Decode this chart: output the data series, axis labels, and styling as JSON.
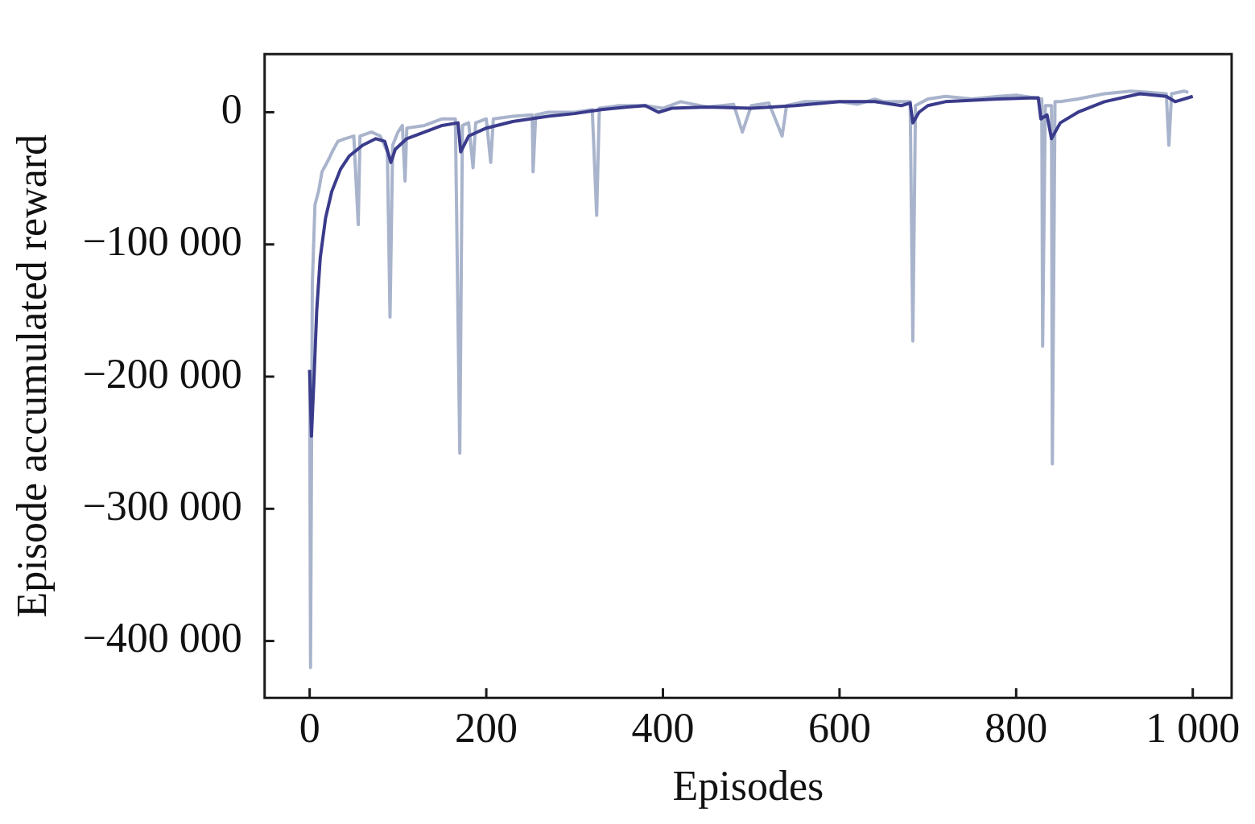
{
  "chart_data": {
    "type": "line",
    "xlabel": "Episodes",
    "ylabel": "Episode accumulated reward",
    "xlim": [
      -51,
      1044
    ],
    "ylim": [
      -443000,
      44000
    ],
    "xticks": [
      0,
      200,
      400,
      600,
      800,
      {
        "value": 1000,
        "label": "1 000"
      }
    ],
    "yticks": [
      {
        "value": -400000,
        "label": "−400 000"
      },
      {
        "value": -300000,
        "label": "−300 000"
      },
      {
        "value": -200000,
        "label": "−200 000"
      },
      {
        "value": -100000,
        "label": "−100 000"
      },
      0
    ],
    "grid": false,
    "legend": false,
    "marker": "none",
    "line_style": "solid",
    "series": [
      {
        "color": "#a9b4cc",
        "x": [
          0,
          1,
          3,
          6,
          10,
          14,
          18,
          22,
          27,
          32,
          40,
          50,
          55,
          57,
          70,
          80,
          88,
          91,
          94,
          100,
          105,
          108,
          110,
          130,
          150,
          165,
          170,
          173,
          180,
          185,
          188,
          200,
          205,
          208,
          220,
          230,
          252,
          253,
          256,
          270,
          300,
          320,
          325,
          328,
          350,
          380,
          400,
          420,
          450,
          480,
          490,
          500,
          520,
          535,
          540,
          560,
          600,
          620,
          640,
          650,
          680,
          683,
          686,
          700,
          720,
          750,
          780,
          800,
          829,
          830,
          833,
          840,
          841,
          844,
          850,
          870,
          900,
          930,
          950,
          970,
          973,
          976,
          990,
          995
        ],
        "values": [
          -195000,
          -420000,
          -130000,
          -70000,
          -60000,
          -45000,
          -40000,
          -35000,
          -28000,
          -22000,
          -20000,
          -18000,
          -85000,
          -18000,
          -15000,
          -18000,
          -30000,
          -155000,
          -25000,
          -15000,
          -10000,
          -52000,
          -12000,
          -10000,
          -5000,
          -5000,
          -258000,
          -10000,
          -8000,
          -42000,
          -8000,
          -5000,
          -38000,
          -5000,
          -4000,
          -3000,
          -2000,
          -45000,
          -2000,
          0,
          0,
          2000,
          -78000,
          3000,
          5000,
          5000,
          3000,
          8000,
          4000,
          6000,
          -15000,
          5000,
          7000,
          -18000,
          5000,
          8000,
          8000,
          6000,
          10000,
          8000,
          8000,
          -173000,
          5000,
          10000,
          12000,
          10000,
          12000,
          13000,
          10000,
          -177000,
          5000,
          5000,
          -266000,
          8000,
          8000,
          10000,
          14000,
          16000,
          15000,
          14000,
          -25000,
          14000,
          16000,
          15000
        ]
      },
      {
        "color": "#3b3b8c",
        "x": [
          0,
          2,
          5,
          8,
          12,
          18,
          25,
          35,
          45,
          60,
          75,
          85,
          92,
          97,
          110,
          130,
          150,
          168,
          171,
          180,
          200,
          230,
          270,
          300,
          330,
          360,
          380,
          395,
          410,
          450,
          500,
          550,
          600,
          640,
          670,
          680,
          683,
          690,
          700,
          720,
          780,
          825,
          828,
          835,
          840,
          850,
          870,
          900,
          940,
          970,
          980,
          1000
        ],
        "values": [
          -195000,
          -245000,
          -200000,
          -150000,
          -110000,
          -80000,
          -60000,
          -43000,
          -33000,
          -25000,
          -20000,
          -22000,
          -38000,
          -28000,
          -20000,
          -15000,
          -10000,
          -8000,
          -30000,
          -18000,
          -12000,
          -7000,
          -3000,
          -1000,
          2000,
          4000,
          5000,
          0,
          3000,
          4000,
          3000,
          5000,
          8000,
          8000,
          5000,
          7000,
          -8000,
          0,
          5000,
          8000,
          10000,
          11000,
          -5000,
          -2000,
          -20000,
          -8000,
          0,
          8000,
          14000,
          12000,
          8000,
          12000
        ]
      }
    ]
  }
}
